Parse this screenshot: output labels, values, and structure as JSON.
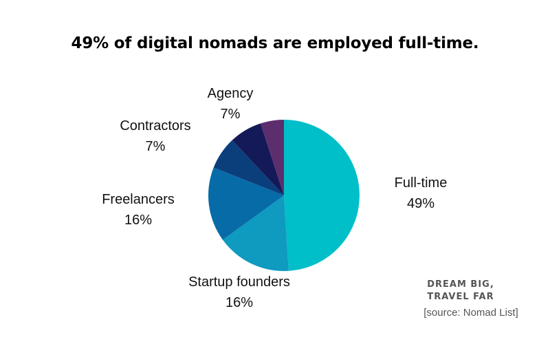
{
  "chart_data": {
    "type": "pie",
    "title": "49% of digital nomads are employed full-time.",
    "slices": [
      {
        "label": "Full-time",
        "value": 49,
        "value_label": "49%",
        "color": "#00BFC8"
      },
      {
        "label": "Startup founders",
        "value": 16,
        "value_label": "16%",
        "color": "#0F9AC0"
      },
      {
        "label": "Freelancers",
        "value": 16,
        "value_label": "16%",
        "color": "#076BA8"
      },
      {
        "label": "Contractors",
        "value": 7,
        "value_label": "7%",
        "color": "#0A3F7C"
      },
      {
        "label": "Agency",
        "value": 7,
        "value_label": "7%",
        "color": "#141A57"
      },
      {
        "label": "",
        "value": 5,
        "value_label": "",
        "color": "#5D2E6E"
      }
    ]
  },
  "branding": {
    "line1": "DREAM BIG,",
    "line2": "TRAVEL FAR"
  },
  "source": "[source: Nomad List]"
}
